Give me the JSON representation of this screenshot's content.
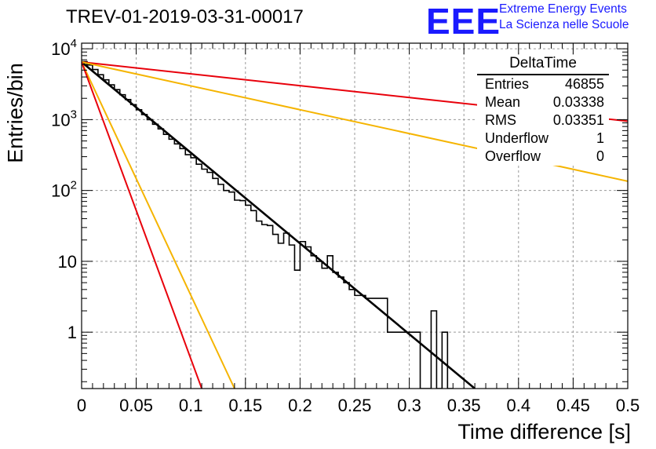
{
  "title": "TREV-01-2019-03-31-00017",
  "logo": {
    "mark": "EEE",
    "line1": "Extreme Energy Events",
    "line2": "La Scienza nelle Scuole",
    "color": "#1a1aff"
  },
  "stats_box": {
    "name": "DeltaTime",
    "rows": [
      {
        "key": "Entries",
        "value": "46855"
      },
      {
        "key": "Mean",
        "value": "0.03338"
      },
      {
        "key": "RMS",
        "value": "0.03351"
      },
      {
        "key": "Underflow",
        "value": "1"
      },
      {
        "key": "Overflow",
        "value": "0"
      }
    ]
  },
  "chart_data": {
    "type": "line",
    "xlabel": "Time difference [s]",
    "ylabel": "Entries/bin",
    "x_ticks": [
      "0",
      "0.05",
      "0.1",
      "0.15",
      "0.2",
      "0.25",
      "0.3",
      "0.35",
      "0.4",
      "0.45",
      "0.5"
    ],
    "y_ticks": [
      "1",
      "10",
      "10^2",
      "10^3",
      "10^4"
    ],
    "xlim": [
      0,
      0.5
    ],
    "ylim": [
      0.16,
      12000
    ],
    "yscale": "log",
    "grid": true,
    "histogram": {
      "color": "#000000",
      "bins": [
        [
          0.0,
          0.005,
          6600
        ],
        [
          0.005,
          0.01,
          5900
        ],
        [
          0.01,
          0.015,
          5100
        ],
        [
          0.015,
          0.02,
          4300
        ],
        [
          0.02,
          0.025,
          3650
        ],
        [
          0.025,
          0.03,
          3100
        ],
        [
          0.03,
          0.035,
          2650
        ],
        [
          0.035,
          0.04,
          2250
        ],
        [
          0.04,
          0.045,
          1920
        ],
        [
          0.045,
          0.05,
          1630
        ],
        [
          0.05,
          0.055,
          1380
        ],
        [
          0.055,
          0.06,
          1180
        ],
        [
          0.06,
          0.065,
          1000
        ],
        [
          0.065,
          0.07,
          860
        ],
        [
          0.07,
          0.075,
          740
        ],
        [
          0.075,
          0.08,
          620
        ],
        [
          0.08,
          0.085,
          530
        ],
        [
          0.085,
          0.09,
          455
        ],
        [
          0.09,
          0.095,
          390
        ],
        [
          0.095,
          0.1,
          320
        ],
        [
          0.1,
          0.105,
          290
        ],
        [
          0.105,
          0.11,
          235
        ],
        [
          0.11,
          0.115,
          200
        ],
        [
          0.115,
          0.12,
          180
        ],
        [
          0.12,
          0.125,
          148
        ],
        [
          0.125,
          0.13,
          122
        ],
        [
          0.13,
          0.135,
          100
        ],
        [
          0.135,
          0.14,
          95
        ],
        [
          0.14,
          0.145,
          73
        ],
        [
          0.145,
          0.15,
          72
        ],
        [
          0.15,
          0.155,
          62
        ],
        [
          0.155,
          0.16,
          52
        ],
        [
          0.16,
          0.165,
          37
        ],
        [
          0.165,
          0.17,
          33
        ],
        [
          0.17,
          0.175,
          32
        ],
        [
          0.175,
          0.18,
          24
        ],
        [
          0.18,
          0.185,
          18
        ],
        [
          0.185,
          0.19,
          25
        ],
        [
          0.19,
          0.195,
          17
        ],
        [
          0.195,
          0.2,
          7.5
        ],
        [
          0.2,
          0.205,
          19
        ],
        [
          0.205,
          0.21,
          16
        ],
        [
          0.21,
          0.215,
          12
        ],
        [
          0.215,
          0.22,
          10
        ],
        [
          0.22,
          0.225,
          8
        ],
        [
          0.225,
          0.23,
          12
        ],
        [
          0.23,
          0.235,
          7
        ],
        [
          0.235,
          0.24,
          6
        ],
        [
          0.24,
          0.245,
          5
        ],
        [
          0.245,
          0.25,
          4
        ],
        [
          0.25,
          0.26,
          3.3
        ],
        [
          0.26,
          0.27,
          3
        ],
        [
          0.27,
          0.28,
          3
        ],
        [
          0.28,
          0.29,
          1
        ],
        [
          0.29,
          0.3,
          1
        ],
        [
          0.3,
          0.31,
          1
        ],
        [
          0.31,
          0.32,
          0.16
        ],
        [
          0.32,
          0.325,
          2
        ],
        [
          0.325,
          0.33,
          0.16
        ],
        [
          0.33,
          0.335,
          1
        ],
        [
          0.335,
          0.34,
          0.16
        ]
      ]
    },
    "series": [
      {
        "color": "#000000",
        "values": [
          [
            0,
            6500
          ],
          [
            0.36,
            0.14
          ]
        ]
      },
      {
        "color": "#e8000b",
        "values": [
          [
            0,
            6500
          ],
          [
            0.5,
            950
          ]
        ]
      },
      {
        "color": "#f5b400",
        "values": [
          [
            0,
            6500
          ],
          [
            0.5,
            135
          ]
        ]
      },
      {
        "color": "#f5b400",
        "values": [
          [
            0,
            6500
          ],
          [
            0.14,
            0.14
          ]
        ]
      },
      {
        "color": "#e8000b",
        "values": [
          [
            0,
            6500
          ],
          [
            0.11,
            0.14
          ]
        ]
      }
    ]
  }
}
